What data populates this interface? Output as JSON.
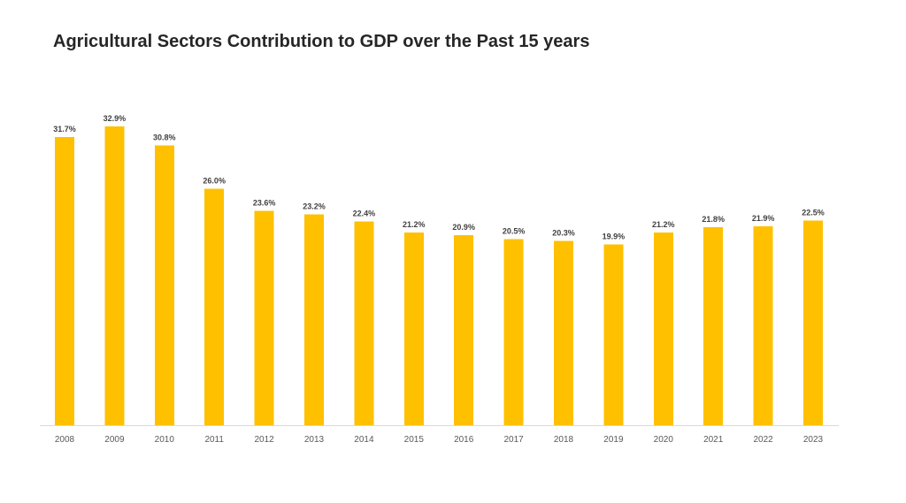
{
  "chart_data": {
    "type": "bar",
    "title": "Agricultural Sectors Contribution to GDP over the Past 15 years",
    "xlabel": "",
    "ylabel": "",
    "categories": [
      "2008",
      "2009",
      "2010",
      "2011",
      "2012",
      "2013",
      "2014",
      "2015",
      "2016",
      "2017",
      "2018",
      "2019",
      "2020",
      "2021",
      "2022",
      "2023"
    ],
    "values": [
      31.7,
      32.9,
      30.8,
      26.0,
      23.6,
      23.2,
      22.4,
      21.2,
      20.9,
      20.5,
      20.3,
      19.9,
      21.2,
      21.8,
      21.9,
      22.5
    ],
    "data_labels": [
      "31.7%",
      "32.9%",
      "30.8%",
      "26.0%",
      "23.6%",
      "23.2%",
      "22.4%",
      "21.2%",
      "20.9%",
      "20.5%",
      "20.3%",
      "19.9%",
      "21.2%",
      "21.8%",
      "21.9%",
      "22.5%"
    ],
    "ylim": [
      0,
      35
    ],
    "grid": false,
    "legend": "none",
    "bar_color": "#FFC000",
    "baseline_color": "#D9D9D9"
  }
}
